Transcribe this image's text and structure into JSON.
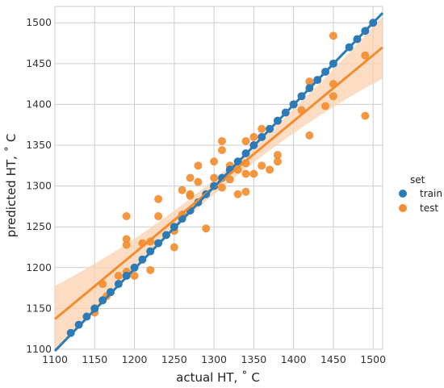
{
  "chart_data": {
    "type": "scatter",
    "xlabel": "actual HT, ˚ C",
    "ylabel": "predicted HT, ˚ C",
    "xlim": [
      1100,
      1512
    ],
    "ylim": [
      1100,
      1520
    ],
    "xticks": [
      1100,
      1150,
      1200,
      1250,
      1300,
      1350,
      1400,
      1450,
      1500
    ],
    "yticks": [
      1100,
      1150,
      1200,
      1250,
      1300,
      1350,
      1400,
      1450,
      1500
    ],
    "grid": true,
    "legend_title": "set",
    "legend_position": "right",
    "series": [
      {
        "name": "train",
        "color": "#2d7bb6",
        "fit": {
          "x0": 1100,
          "y0": 1098,
          "x1": 1512,
          "y1": 1512
        },
        "points": [
          [
            1120,
            1120
          ],
          [
            1130,
            1130
          ],
          [
            1140,
            1140
          ],
          [
            1150,
            1150
          ],
          [
            1160,
            1160
          ],
          [
            1170,
            1170
          ],
          [
            1180,
            1180
          ],
          [
            1190,
            1190
          ],
          [
            1200,
            1200
          ],
          [
            1210,
            1210
          ],
          [
            1220,
            1220
          ],
          [
            1230,
            1230
          ],
          [
            1240,
            1240
          ],
          [
            1250,
            1250
          ],
          [
            1260,
            1260
          ],
          [
            1270,
            1270
          ],
          [
            1280,
            1280
          ],
          [
            1290,
            1290
          ],
          [
            1300,
            1300
          ],
          [
            1310,
            1310
          ],
          [
            1320,
            1320
          ],
          [
            1330,
            1330
          ],
          [
            1340,
            1340
          ],
          [
            1350,
            1350
          ],
          [
            1360,
            1360
          ],
          [
            1370,
            1370
          ],
          [
            1380,
            1380
          ],
          [
            1390,
            1390
          ],
          [
            1400,
            1400
          ],
          [
            1410,
            1410
          ],
          [
            1420,
            1420
          ],
          [
            1430,
            1430
          ],
          [
            1440,
            1440
          ],
          [
            1450,
            1450
          ],
          [
            1470,
            1470
          ],
          [
            1480,
            1480
          ],
          [
            1490,
            1490
          ],
          [
            1500,
            1500
          ]
        ]
      },
      {
        "name": "test",
        "color": "#f28c2e",
        "band_color": "#fbd2b0",
        "fit": {
          "x0": 1100,
          "y0": 1137,
          "x1": 1512,
          "y1": 1470
        },
        "points": [
          [
            1150,
            1145
          ],
          [
            1160,
            1180
          ],
          [
            1165,
            1165
          ],
          [
            1170,
            1170
          ],
          [
            1180,
            1190
          ],
          [
            1190,
            1235
          ],
          [
            1190,
            1263
          ],
          [
            1190,
            1228
          ],
          [
            1190,
            1195
          ],
          [
            1200,
            1190
          ],
          [
            1210,
            1230
          ],
          [
            1220,
            1197
          ],
          [
            1220,
            1232
          ],
          [
            1230,
            1263
          ],
          [
            1230,
            1284
          ],
          [
            1250,
            1225
          ],
          [
            1250,
            1245
          ],
          [
            1260,
            1295
          ],
          [
            1260,
            1265
          ],
          [
            1270,
            1290
          ],
          [
            1270,
            1288
          ],
          [
            1270,
            1310
          ],
          [
            1280,
            1305
          ],
          [
            1280,
            1325
          ],
          [
            1290,
            1248
          ],
          [
            1300,
            1300
          ],
          [
            1300,
            1310
          ],
          [
            1300,
            1330
          ],
          [
            1310,
            1298
          ],
          [
            1310,
            1344
          ],
          [
            1310,
            1355
          ],
          [
            1320,
            1308
          ],
          [
            1320,
            1325
          ],
          [
            1330,
            1290
          ],
          [
            1330,
            1320
          ],
          [
            1340,
            1293
          ],
          [
            1340,
            1315
          ],
          [
            1340,
            1328
          ],
          [
            1340,
            1355
          ],
          [
            1350,
            1360
          ],
          [
            1350,
            1315
          ],
          [
            1360,
            1370
          ],
          [
            1360,
            1325
          ],
          [
            1370,
            1320
          ],
          [
            1380,
            1338
          ],
          [
            1380,
            1330
          ],
          [
            1400,
            1400
          ],
          [
            1410,
            1393
          ],
          [
            1420,
            1428
          ],
          [
            1420,
            1362
          ],
          [
            1440,
            1398
          ],
          [
            1450,
            1484
          ],
          [
            1450,
            1425
          ],
          [
            1450,
            1410
          ],
          [
            1490,
            1460
          ],
          [
            1490,
            1386
          ]
        ]
      }
    ]
  }
}
